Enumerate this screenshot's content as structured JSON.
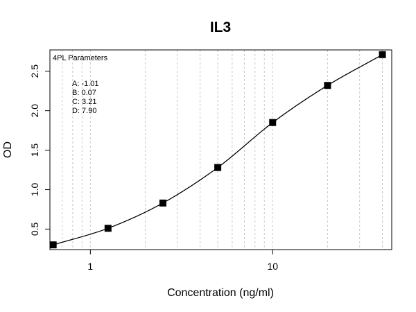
{
  "chart_data": {
    "type": "scatter",
    "title": "IL3",
    "xlabel": "Concentration (ng/ml)",
    "ylabel": "OD",
    "x_scale": "log",
    "xlim": [
      0.6,
      45
    ],
    "ylim": [
      0.24,
      2.77
    ],
    "x_ticks": [
      1,
      10
    ],
    "x_tick_labels": [
      "1",
      "10"
    ],
    "y_ticks": [
      0.5,
      1.0,
      1.5,
      2.0,
      2.5
    ],
    "y_tick_labels": [
      "0.5",
      "1.0",
      "1.5",
      "2.0",
      "2.5"
    ],
    "grid": "vertical dotted at log minor ticks",
    "points": [
      {
        "x": 0.625,
        "y": 0.3
      },
      {
        "x": 1.25,
        "y": 0.51
      },
      {
        "x": 2.5,
        "y": 0.83
      },
      {
        "x": 5,
        "y": 1.28
      },
      {
        "x": 10,
        "y": 1.85
      },
      {
        "x": 20,
        "y": 2.32
      },
      {
        "x": 40,
        "y": 2.71
      }
    ],
    "fit": {
      "model": "4PL",
      "A": -1.01,
      "B": 0.07,
      "C": 3.21,
      "D": 7.9
    },
    "legend": {
      "title": "4PL Parameters",
      "placement": "top-left",
      "entries": [
        "A: -1.01",
        "B: 0.07",
        "C: 3.21",
        "D: 7.90"
      ]
    }
  }
}
